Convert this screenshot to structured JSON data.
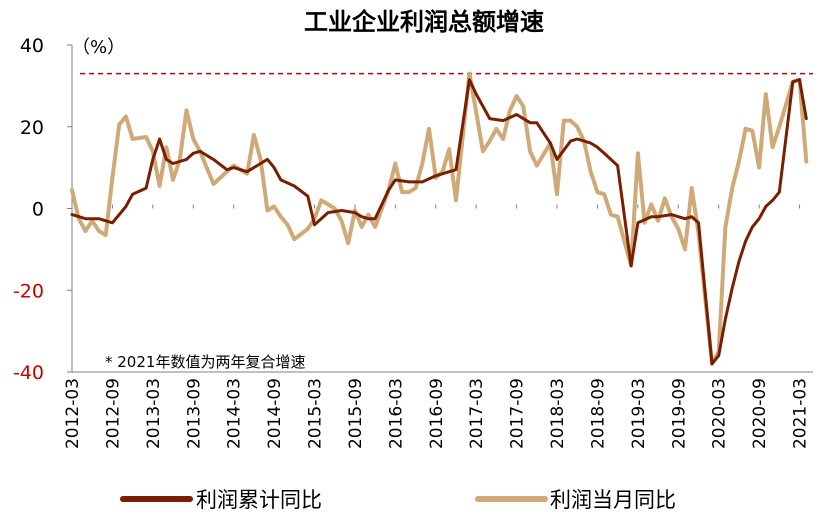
{
  "chart_data": {
    "type": "line",
    "title": "工业企业利润总额增速",
    "unit_label": "（%）",
    "note": "* 2021年数值为两年复合增速",
    "ylim": [
      -40,
      40
    ],
    "yticks": [
      40,
      20,
      0,
      -20,
      -40
    ],
    "xlim": [
      "2012-03",
      "2021-05"
    ],
    "xticks": [
      "2012-03",
      "2012-09",
      "2013-03",
      "2013-09",
      "2014-03",
      "2014-09",
      "2015-03",
      "2015-09",
      "2016-03",
      "2016-09",
      "2017-03",
      "2017-09",
      "2018-03",
      "2018-09",
      "2019-03",
      "2019-09",
      "2020-03",
      "2020-09",
      "2021-03"
    ],
    "reference_line": {
      "y": 33,
      "style": "dashed",
      "color": "#cc0000"
    },
    "legend": {
      "position": "bottom"
    },
    "colors": {
      "cumulative": "#7a1e00",
      "monthly": "#cfaa78",
      "negative_ticks": "#cc0000",
      "axis": "#7f7f7f"
    },
    "series": [
      {
        "name": "利润累计同比",
        "key": "cumulative",
        "points": [
          [
            "2012-03",
            -1.5
          ],
          [
            "2012-05",
            -2.5
          ],
          [
            "2012-07",
            -2.5
          ],
          [
            "2012-09",
            -3.5
          ],
          [
            "2012-11",
            0.5
          ],
          [
            "2012-12",
            3.5
          ],
          [
            "2013-02",
            5
          ],
          [
            "2013-03",
            12
          ],
          [
            "2013-04",
            17
          ],
          [
            "2013-05",
            12
          ],
          [
            "2013-06",
            11
          ],
          [
            "2013-08",
            12
          ],
          [
            "2013-09",
            13.5
          ],
          [
            "2013-10",
            14
          ],
          [
            "2013-11",
            13
          ],
          [
            "2013-12",
            12
          ],
          [
            "2014-02",
            9.5
          ],
          [
            "2014-03",
            10
          ],
          [
            "2014-05",
            9
          ],
          [
            "2014-07",
            11
          ],
          [
            "2014-08",
            12
          ],
          [
            "2014-09",
            10
          ],
          [
            "2014-10",
            7
          ],
          [
            "2014-12",
            5.5
          ],
          [
            "2015-02",
            3
          ],
          [
            "2015-03",
            -4
          ],
          [
            "2015-05",
            -1
          ],
          [
            "2015-07",
            -0.5
          ],
          [
            "2015-09",
            -1
          ],
          [
            "2015-10",
            -2
          ],
          [
            "2015-11",
            -2.5
          ],
          [
            "2015-12",
            -2.5
          ],
          [
            "2016-02",
            4.5
          ],
          [
            "2016-03",
            7
          ],
          [
            "2016-05",
            6.5
          ],
          [
            "2016-07",
            6.5
          ],
          [
            "2016-09",
            8
          ],
          [
            "2016-11",
            9
          ],
          [
            "2016-12",
            9.5
          ],
          [
            "2017-02",
            31.5
          ],
          [
            "2017-03",
            28
          ],
          [
            "2017-05",
            22
          ],
          [
            "2017-07",
            21.5
          ],
          [
            "2017-09",
            23
          ],
          [
            "2017-10",
            22
          ],
          [
            "2017-11",
            21
          ],
          [
            "2017-12",
            21
          ],
          [
            "2018-02",
            16
          ],
          [
            "2018-03",
            12
          ],
          [
            "2018-05",
            16.5
          ],
          [
            "2018-06",
            17
          ],
          [
            "2018-08",
            16
          ],
          [
            "2018-09",
            15
          ],
          [
            "2018-10",
            13.5
          ],
          [
            "2018-12",
            10.5
          ],
          [
            "2019-02",
            -14
          ],
          [
            "2019-03",
            -3.5
          ],
          [
            "2019-05",
            -2
          ],
          [
            "2019-06",
            -2
          ],
          [
            "2019-08",
            -1.5
          ],
          [
            "2019-09",
            -2
          ],
          [
            "2019-10",
            -2.5
          ],
          [
            "2019-11",
            -2
          ],
          [
            "2019-12",
            -3.5
          ],
          [
            "2020-02",
            -38
          ],
          [
            "2020-03",
            -36
          ],
          [
            "2020-04",
            -27
          ],
          [
            "2020-05",
            -19.5
          ],
          [
            "2020-06",
            -13
          ],
          [
            "2020-07",
            -8
          ],
          [
            "2020-08",
            -4.5
          ],
          [
            "2020-09",
            -2.5
          ],
          [
            "2020-10",
            0.5
          ],
          [
            "2020-11",
            2
          ],
          [
            "2020-12",
            4
          ],
          [
            "2021-02",
            31
          ],
          [
            "2021-03",
            31.5
          ],
          [
            "2021-04",
            22
          ]
        ]
      },
      {
        "name": "利润当月同比",
        "key": "monthly",
        "points": [
          [
            "2012-03",
            4.5
          ],
          [
            "2012-04",
            -2.5
          ],
          [
            "2012-05",
            -5.5
          ],
          [
            "2012-06",
            -3
          ],
          [
            "2012-07",
            -5.5
          ],
          [
            "2012-08",
            -6.5
          ],
          [
            "2012-09",
            7.5
          ],
          [
            "2012-10",
            20.5
          ],
          [
            "2012-11",
            22.5
          ],
          [
            "2012-12",
            17
          ],
          [
            "2013-02",
            17.5
          ],
          [
            "2013-03",
            14
          ],
          [
            "2013-04",
            5.5
          ],
          [
            "2013-05",
            15
          ],
          [
            "2013-06",
            7
          ],
          [
            "2013-07",
            12
          ],
          [
            "2013-08",
            24
          ],
          [
            "2013-09",
            17
          ],
          [
            "2013-10",
            14
          ],
          [
            "2013-11",
            10
          ],
          [
            "2013-12",
            6
          ],
          [
            "2014-02",
            9
          ],
          [
            "2014-03",
            10.5
          ],
          [
            "2014-04",
            9.5
          ],
          [
            "2014-05",
            8.5
          ],
          [
            "2014-06",
            18
          ],
          [
            "2014-07",
            12
          ],
          [
            "2014-08",
            -0.5
          ],
          [
            "2014-09",
            0.5
          ],
          [
            "2014-10",
            -2
          ],
          [
            "2014-11",
            -4
          ],
          [
            "2014-12",
            -7.5
          ],
          [
            "2015-02",
            -5
          ],
          [
            "2015-03",
            -2.5
          ],
          [
            "2015-04",
            2
          ],
          [
            "2015-05",
            1
          ],
          [
            "2015-06",
            0
          ],
          [
            "2015-07",
            -3
          ],
          [
            "2015-08",
            -8.5
          ],
          [
            "2015-09",
            -0.5
          ],
          [
            "2015-10",
            -4.5
          ],
          [
            "2015-11",
            -1.5
          ],
          [
            "2015-12",
            -4.5
          ],
          [
            "2016-02",
            4.5
          ],
          [
            "2016-03",
            11
          ],
          [
            "2016-04",
            4
          ],
          [
            "2016-05",
            4
          ],
          [
            "2016-06",
            5
          ],
          [
            "2016-07",
            11
          ],
          [
            "2016-08",
            19.5
          ],
          [
            "2016-09",
            7.5
          ],
          [
            "2016-10",
            9
          ],
          [
            "2016-11",
            14.5
          ],
          [
            "2016-12",
            2
          ],
          [
            "2017-02",
            33
          ],
          [
            "2017-03",
            23.5
          ],
          [
            "2017-04",
            14
          ],
          [
            "2017-05",
            16.5
          ],
          [
            "2017-06",
            19.5
          ],
          [
            "2017-07",
            17
          ],
          [
            "2017-08",
            24
          ],
          [
            "2017-09",
            27.5
          ],
          [
            "2017-10",
            25
          ],
          [
            "2017-11",
            14
          ],
          [
            "2017-12",
            10.5
          ],
          [
            "2018-02",
            16
          ],
          [
            "2018-03",
            3.5
          ],
          [
            "2018-04",
            21.5
          ],
          [
            "2018-05",
            21.5
          ],
          [
            "2018-06",
            20
          ],
          [
            "2018-07",
            16.5
          ],
          [
            "2018-08",
            9
          ],
          [
            "2018-09",
            4
          ],
          [
            "2018-10",
            3.5
          ],
          [
            "2018-11",
            -1.5
          ],
          [
            "2018-12",
            -2
          ],
          [
            "2019-02",
            -14
          ],
          [
            "2019-03",
            13.5
          ],
          [
            "2019-04",
            -3.5
          ],
          [
            "2019-05",
            1
          ],
          [
            "2019-06",
            -3
          ],
          [
            "2019-07",
            2.5
          ],
          [
            "2019-08",
            -2
          ],
          [
            "2019-09",
            -5
          ],
          [
            "2019-10",
            -10
          ],
          [
            "2019-11",
            5
          ],
          [
            "2019-12",
            -6
          ],
          [
            "2020-02",
            -38
          ],
          [
            "2020-03",
            -35
          ],
          [
            "2020-04",
            -4.5
          ],
          [
            "2020-05",
            5
          ],
          [
            "2020-06",
            11.5
          ],
          [
            "2020-07",
            19.5
          ],
          [
            "2020-08",
            19
          ],
          [
            "2020-09",
            10
          ],
          [
            "2020-10",
            28
          ],
          [
            "2020-11",
            15
          ],
          [
            "2020-12",
            20
          ],
          [
            "2021-02",
            31
          ],
          [
            "2021-03",
            31.5
          ],
          [
            "2021-04",
            11.5
          ]
        ]
      }
    ]
  }
}
